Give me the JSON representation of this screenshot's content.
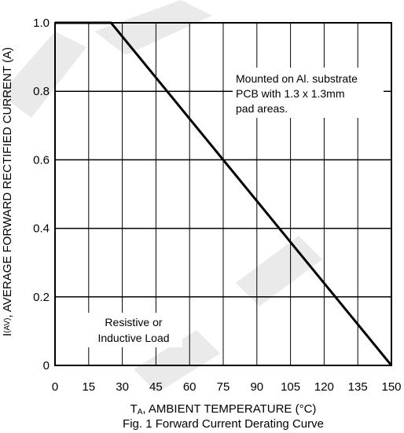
{
  "chart_data": {
    "type": "line",
    "title": "Fig. 1 Forward Current Derating Curve",
    "xlabel_main": "T",
    "xlabel_sub": "A",
    "xlabel_rest": ", AMBIENT TEMPERATURE (°C)",
    "ylabel_main": "I",
    "ylabel_sub": "(AV)",
    "ylabel_rest": ", AVERAGE FORWARD RECTIFIED CURRENT (A)",
    "xlim": [
      0,
      150
    ],
    "ylim": [
      0,
      1.0
    ],
    "x_ticks": [
      0,
      15,
      30,
      45,
      60,
      75,
      90,
      105,
      120,
      135,
      150
    ],
    "x_tick_labels": [
      "0",
      "15",
      "30",
      "45",
      "60",
      "75",
      "90",
      "105",
      "120",
      "135",
      "150"
    ],
    "y_ticks": [
      0,
      0.2,
      0.4,
      0.6,
      0.8,
      1.0
    ],
    "y_tick_labels": [
      "0",
      "0.2",
      "0.4",
      "0.6",
      "0.8",
      "1.0"
    ],
    "grid": true,
    "series": [
      {
        "x": [
          0,
          25,
          150
        ],
        "values": [
          1.0,
          1.0,
          0
        ]
      }
    ],
    "annotations": {
      "mounting": [
        "Mounted on Al. substrate",
        "PCB with 1.3 x 1.3mm",
        "pad areas."
      ],
      "load": [
        "Resistive or",
        "Inductive Load"
      ]
    }
  },
  "colors": {
    "line": "#000000",
    "grid": "#000000",
    "background": "#ffffff"
  }
}
